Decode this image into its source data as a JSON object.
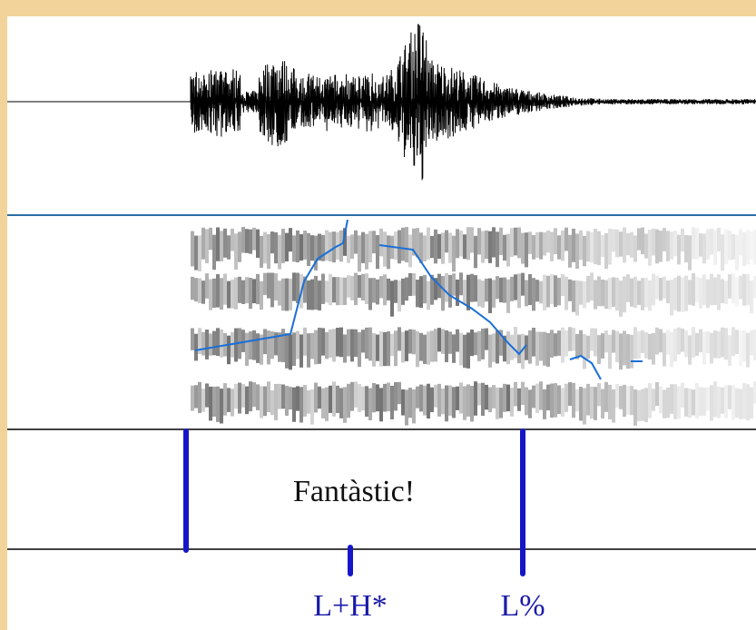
{
  "textgrid": {
    "word": "Fantàstic!",
    "tones": [
      "L+H*",
      "L%"
    ]
  }
}
